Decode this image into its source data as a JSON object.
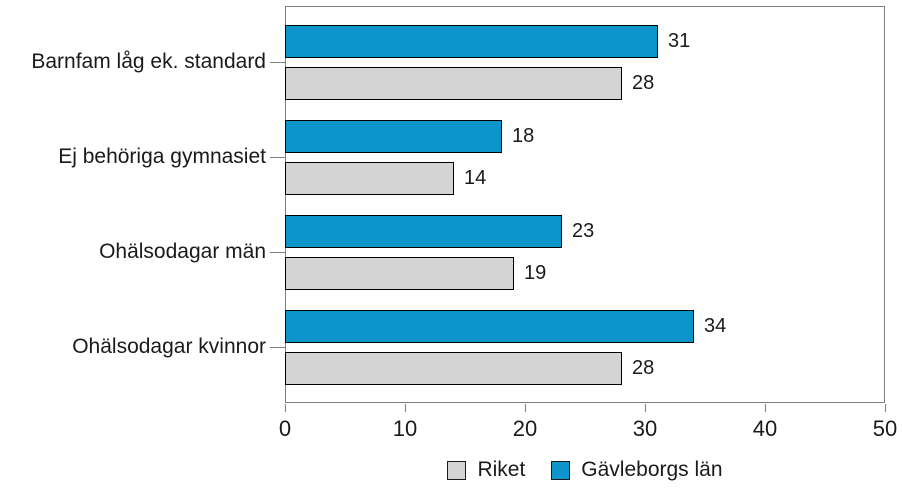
{
  "chart_data": {
    "type": "bar",
    "orientation": "horizontal",
    "title": "",
    "xlabel": "",
    "ylabel": "",
    "categories": [
      "Barnfam låg ek. standard",
      "Ej behöriga gymnasiet",
      "Ohälsodagar män",
      "Ohälsodagar kvinnor"
    ],
    "series": [
      {
        "name": "Gävleborgs län",
        "color": "#0b95cb",
        "values": [
          31,
          18,
          23,
          34
        ]
      },
      {
        "name": "Riket",
        "color": "#d4d4d4",
        "values": [
          28,
          14,
          19,
          28
        ]
      }
    ],
    "xlim": [
      0,
      50
    ],
    "x_ticks": [
      0,
      10,
      20,
      30,
      40,
      50
    ],
    "value_labels_shown": true,
    "grid": false,
    "legend_position": "bottom",
    "legend": [
      {
        "label": "Riket",
        "color": "#d4d4d4"
      },
      {
        "label": "Gävleborgs län",
        "color": "#0b95cb"
      }
    ]
  },
  "colors": {
    "bar_border": "#000000",
    "frame": "#7f7f7f",
    "text": "#1a1a1a",
    "background": "#ffffff"
  }
}
